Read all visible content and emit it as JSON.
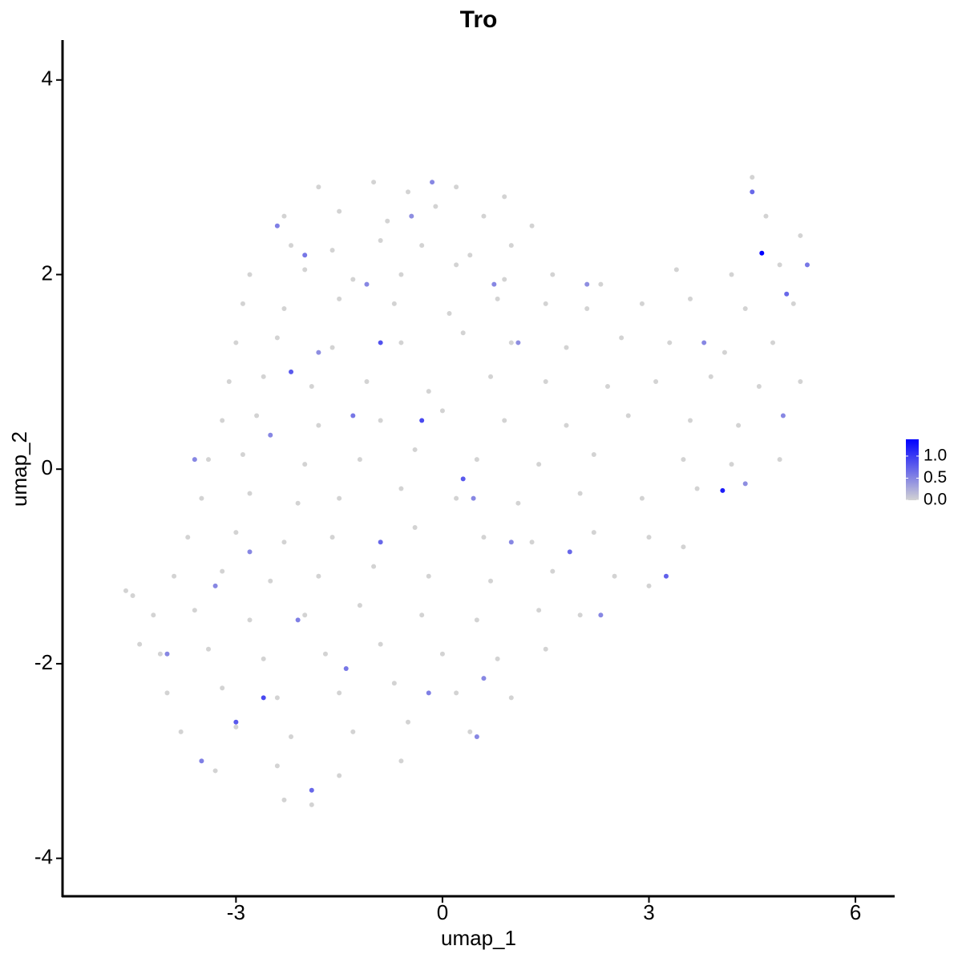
{
  "chart_data": {
    "type": "scatter",
    "title": "Tro",
    "xlabel": "umap_1",
    "ylabel": "umap_2",
    "xlim": [
      -5.52,
      6.57
    ],
    "ylim": [
      -4.39,
      4.41
    ],
    "xticks": [
      -3,
      0,
      3,
      6
    ],
    "yticks": [
      -4,
      -2,
      0,
      2,
      4
    ],
    "colorscale": [
      "#d3d3d3",
      "#0000ff"
    ],
    "colorlim": [
      0,
      1.38
    ],
    "colorticks": [
      {
        "value": 0,
        "label": "0.0"
      },
      {
        "value": 0.5,
        "label": "0.5"
      },
      {
        "value": 1,
        "label": "1.0"
      }
    ],
    "x": [
      -1.8,
      -1.0,
      -0.5,
      0.2,
      0.9,
      -2.3,
      -1.5,
      -0.8,
      -0.1,
      0.6,
      1.3,
      -2.2,
      -1.6,
      -0.9,
      -0.3,
      0.4,
      1.0,
      -2.8,
      -2.0,
      -1.3,
      -0.6,
      0.2,
      0.9,
      1.6,
      2.3,
      3.4,
      4.2,
      4.9,
      -2.9,
      -2.3,
      -1.5,
      -0.7,
      0.1,
      0.8,
      1.5,
      2.1,
      2.9,
      3.6,
      4.4,
      5.1,
      -3.0,
      -2.4,
      -1.6,
      -0.6,
      0.3,
      1.0,
      1.8,
      2.6,
      3.3,
      4.1,
      4.8,
      -3.1,
      -2.6,
      -1.9,
      -1.1,
      -0.2,
      0.7,
      1.5,
      2.4,
      3.1,
      3.9,
      4.6,
      5.2,
      -3.2,
      -2.7,
      -1.8,
      -0.9,
      0.0,
      0.9,
      1.8,
      2.7,
      3.6,
      4.3,
      -3.4,
      -2.9,
      -2.0,
      -1.2,
      -0.4,
      0.5,
      1.4,
      2.2,
      3.5,
      4.2,
      4.9,
      -3.5,
      -2.8,
      -2.1,
      -1.5,
      -0.6,
      0.2,
      1.1,
      2.0,
      2.9,
      3.7,
      -3.7,
      -3.0,
      -2.3,
      -1.6,
      -0.4,
      0.6,
      1.3,
      2.2,
      3.0,
      3.5,
      -3.9,
      -3.2,
      -2.5,
      -1.8,
      -1.0,
      -0.2,
      0.7,
      1.6,
      2.5,
      3.0,
      -4.2,
      -3.6,
      -2.8,
      -2.0,
      -1.2,
      -0.3,
      0.5,
      1.4,
      2.0,
      -4.1,
      -3.4,
      -2.6,
      -1.7,
      -0.9,
      0.0,
      0.8,
      1.5,
      -4.0,
      -3.2,
      -2.4,
      -1.5,
      -0.7,
      0.2,
      1.0,
      -3.8,
      -3.0,
      -2.2,
      -1.3,
      -0.5,
      0.4,
      -3.3,
      -2.4,
      -1.5,
      -0.6,
      -2.3,
      -1.9,
      -4.6,
      -4.5,
      -4.4,
      4.5,
      4.7,
      5.2,
      4.64,
      4.07,
      -0.3,
      -0.9,
      -2.2,
      -2.6,
      -3.0,
      -1.9,
      1.85,
      3.25,
      0.3,
      -0.9,
      4.5,
      5.0,
      5.3,
      -1.3,
      -2.5,
      -3.3,
      -2.1,
      -1.4,
      0.6,
      -0.2,
      1.0,
      0.45,
      -1.1,
      -2.0,
      -2.4,
      -0.15,
      2.1,
      3.8,
      -3.6,
      -4.0,
      1.1,
      2.3,
      4.4,
      -2.8,
      4.95,
      0.75,
      -1.8,
      -3.5,
      0.5,
      -0.45
    ],
    "y": [
      2.9,
      2.95,
      2.85,
      2.9,
      2.8,
      2.6,
      2.65,
      2.55,
      2.7,
      2.6,
      2.5,
      2.3,
      2.25,
      2.35,
      2.3,
      2.2,
      2.3,
      2.0,
      2.05,
      1.95,
      2.0,
      2.1,
      1.95,
      2.0,
      1.9,
      2.05,
      2.0,
      2.1,
      1.7,
      1.65,
      1.75,
      1.7,
      1.6,
      1.75,
      1.7,
      1.65,
      1.7,
      1.75,
      1.65,
      1.7,
      1.3,
      1.35,
      1.25,
      1.3,
      1.4,
      1.3,
      1.25,
      1.35,
      1.3,
      1.2,
      1.3,
      0.9,
      0.95,
      0.85,
      0.9,
      0.8,
      0.95,
      0.9,
      0.85,
      0.9,
      0.95,
      0.85,
      0.9,
      0.5,
      0.55,
      0.45,
      0.5,
      0.6,
      0.5,
      0.45,
      0.55,
      0.5,
      0.45,
      0.1,
      0.15,
      0.05,
      0.1,
      0.2,
      0.1,
      0.05,
      0.15,
      0.1,
      0.05,
      0.1,
      -0.3,
      -0.25,
      -0.35,
      -0.3,
      -0.2,
      -0.3,
      -0.35,
      -0.25,
      -0.3,
      -0.2,
      -0.7,
      -0.65,
      -0.75,
      -0.7,
      -0.6,
      -0.7,
      -0.75,
      -0.65,
      -0.7,
      -0.8,
      -1.1,
      -1.05,
      -1.15,
      -1.1,
      -1.0,
      -1.1,
      -1.15,
      -1.05,
      -1.1,
      -1.2,
      -1.5,
      -1.45,
      -1.55,
      -1.5,
      -1.4,
      -1.5,
      -1.55,
      -1.45,
      -1.5,
      -1.9,
      -1.85,
      -1.95,
      -1.9,
      -1.8,
      -1.9,
      -1.95,
      -1.85,
      -2.3,
      -2.25,
      -2.35,
      -2.3,
      -2.2,
      -2.3,
      -2.35,
      -2.7,
      -2.65,
      -2.75,
      -2.7,
      -2.6,
      -2.7,
      -3.1,
      -3.05,
      -3.15,
      -3.0,
      -3.4,
      -3.45,
      -1.25,
      -1.3,
      -1.8,
      3.0,
      2.6,
      2.4,
      2.22,
      -0.22,
      0.5,
      1.3,
      1.0,
      -2.35,
      -2.6,
      -3.3,
      -0.85,
      -1.1,
      -0.1,
      -0.75,
      2.85,
      1.8,
      2.1,
      0.55,
      0.35,
      -1.2,
      -1.55,
      -2.05,
      -2.15,
      -2.3,
      -0.75,
      -0.3,
      1.9,
      2.2,
      2.5,
      2.95,
      1.9,
      1.3,
      0.1,
      -1.9,
      1.3,
      -1.5,
      -0.15,
      -0.85,
      0.55,
      1.9,
      1.2,
      -3.0,
      -2.75,
      2.6
    ],
    "expression": [
      0,
      0,
      0,
      0,
      0,
      0,
      0,
      0,
      0,
      0,
      0,
      0,
      0,
      0,
      0,
      0,
      0,
      0,
      0,
      0,
      0,
      0,
      0,
      0,
      0,
      0,
      0,
      0,
      0,
      0,
      0,
      0,
      0,
      0,
      0,
      0,
      0,
      0,
      0,
      0,
      0,
      0,
      0,
      0,
      0,
      0,
      0,
      0,
      0,
      0,
      0,
      0,
      0,
      0,
      0,
      0,
      0,
      0,
      0,
      0,
      0,
      0,
      0,
      0,
      0,
      0,
      0,
      0,
      0,
      0,
      0,
      0,
      0,
      0,
      0,
      0,
      0,
      0,
      0,
      0,
      0,
      0,
      0,
      0,
      0,
      0,
      0,
      0,
      0,
      0,
      0,
      0,
      0,
      0,
      0,
      0,
      0,
      0,
      0,
      0,
      0,
      0,
      0,
      0,
      0,
      0,
      0,
      0,
      0,
      0,
      0,
      0,
      0,
      0,
      0,
      0,
      0,
      0,
      0,
      0,
      0,
      0,
      0,
      0,
      0,
      0,
      0,
      0,
      0,
      0,
      0,
      0,
      0,
      0,
      0,
      0,
      0,
      0,
      0,
      0,
      0,
      0,
      0,
      0,
      0,
      0,
      0,
      0,
      0,
      0,
      0,
      0,
      0,
      0,
      0,
      0,
      1.38,
      1.2,
      0.9,
      0.85,
      0.8,
      0.9,
      0.8,
      0.7,
      0.7,
      0.75,
      0.8,
      0.7,
      0.7,
      0.7,
      0.6,
      0.6,
      0.5,
      0.5,
      0.55,
      0.6,
      0.5,
      0.55,
      0.5,
      0.5,
      0.5,
      0.6,
      0.55,
      0.5,
      0.45,
      0.5,
      0.5,
      0.5,
      0.45,
      0.5,
      0.45,
      0.5,
      0.5,
      0.5,
      0.45,
      0.55,
      0.5,
      0.45
    ]
  }
}
